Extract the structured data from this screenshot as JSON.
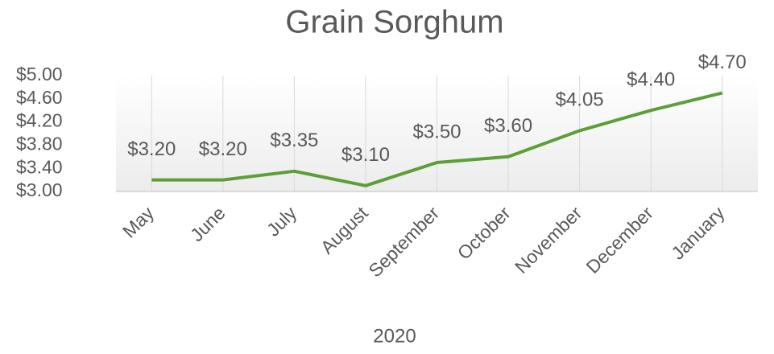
{
  "chart_data": {
    "type": "line",
    "title": "Grain Sorghum",
    "x_label": "2020",
    "categories": [
      "May",
      "June",
      "July",
      "August",
      "September",
      "October",
      "November",
      "December",
      "January"
    ],
    "series": [
      {
        "name": "Grain Sorghum",
        "color": "#5c9f38",
        "values": [
          3.2,
          3.2,
          3.35,
          3.1,
          3.5,
          3.6,
          4.05,
          4.4,
          4.7
        ],
        "value_labels": [
          "$3.20",
          "$3.20",
          "$3.35",
          "$3.10",
          "$3.50",
          "$3.60",
          "$4.05",
          "$4.40",
          "$4.70"
        ]
      }
    ],
    "ylim": [
      3,
      5
    ],
    "yticks": [
      {
        "value": 3,
        "label": "$3.00"
      },
      {
        "value": 3.4,
        "label": "$3.40"
      },
      {
        "value": 3.8,
        "label": "$3.80"
      },
      {
        "value": 4.2,
        "label": "$4.20"
      },
      {
        "value": 4.6,
        "label": "$4.60"
      },
      {
        "value": 5,
        "label": "$5.00"
      }
    ],
    "grid": "x"
  }
}
